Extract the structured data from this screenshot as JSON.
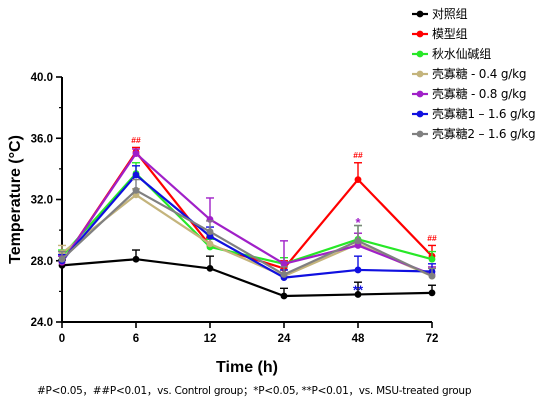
{
  "chart_data": {
    "type": "line",
    "title": "",
    "xlabel": "Time (h)",
    "ylabel": "Temperature (°C)",
    "x": [
      0,
      6,
      12,
      24,
      48,
      72
    ],
    "x_ticks": [
      "0",
      "6",
      "12",
      "24",
      "48",
      "72"
    ],
    "y_ticks": [
      "24.0",
      "28.0",
      "32.0",
      "36.0",
      "40.0"
    ],
    "ylim": [
      24,
      40
    ],
    "grid": false,
    "legend_position": "top-right",
    "series": [
      {
        "name": "对照组",
        "color": "#000000",
        "values": [
          27.7,
          28.1,
          27.5,
          25.7,
          25.8,
          25.9
        ],
        "errors": [
          0.35,
          0.6,
          0.8,
          0.5,
          0.8,
          0.5
        ]
      },
      {
        "name": "模型组",
        "color": "#ff0000",
        "values": [
          27.9,
          35.1,
          29.0,
          27.5,
          33.3,
          28.3
        ],
        "errors": [
          0.4,
          0.3,
          0.5,
          0.5,
          1.1,
          0.7
        ]
      },
      {
        "name": "秋水仙碱组",
        "color": "#27e827",
        "values": [
          28.3,
          33.7,
          28.9,
          27.8,
          29.4,
          28.1
        ],
        "errors": [
          0.4,
          0.7,
          0.5,
          0.4,
          0.9,
          0.5
        ]
      },
      {
        "name": "壳寡糖 - 0.4 g/kg",
        "color": "#c4b47c",
        "values": [
          28.5,
          32.3,
          29.1,
          27.0,
          29.1,
          27.0
        ],
        "errors": [
          0.5,
          0.4,
          0.5,
          0.4,
          0.7,
          0.5
        ]
      },
      {
        "name": "壳寡糖 - 0.8 g/kg",
        "color": "#a020c8",
        "values": [
          27.9,
          35.0,
          30.7,
          27.8,
          29.0,
          27.1
        ],
        "errors": [
          0.4,
          0.3,
          1.4,
          1.5,
          0.8,
          0.5
        ]
      },
      {
        "name": "壳寡糖1 – 1.6 g/kg",
        "color": "#1010e0",
        "values": [
          28.0,
          33.6,
          29.6,
          26.9,
          27.4,
          27.3
        ],
        "errors": [
          0.4,
          0.6,
          0.6,
          0.5,
          0.9,
          0.5
        ]
      },
      {
        "name": "壳寡糖2 – 1.6 g/kg",
        "color": "#808080",
        "values": [
          28.1,
          32.6,
          29.9,
          27.1,
          29.3,
          27.0
        ],
        "errors": [
          0.5,
          0.7,
          0.7,
          0.5,
          1.0,
          0.5
        ]
      }
    ],
    "annotations": [
      {
        "text": "##",
        "x": 6,
        "y": 35.7,
        "color": "#ff0000"
      },
      {
        "text": "##",
        "x": 48,
        "y": 34.7,
        "color": "#ff0000"
      },
      {
        "text": "##",
        "x": 72,
        "y": 29.3,
        "color": "#ff0000"
      },
      {
        "text": "*",
        "x": 48,
        "y": 30.6,
        "color": "#a020c8"
      },
      {
        "text": "**",
        "x": 48,
        "y": 26.2,
        "color": "#1010e0"
      }
    ],
    "footnote": "#P<0.05，##P<0.01，vs. Control group；*P<0.05, **P<0.01，vs. MSU-treated group"
  }
}
